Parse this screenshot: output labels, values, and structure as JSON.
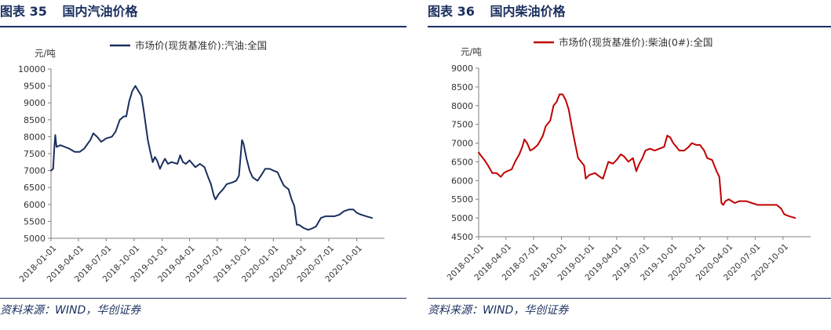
{
  "figures": [
    {
      "fig_label": "图表",
      "fig_number": "35",
      "title": "国内汽油价格",
      "source": "资料来源：WIND，华创证券",
      "chart_data": {
        "type": "line",
        "unit_label": "元/吨",
        "ylim": [
          5000,
          10000
        ],
        "y_ticks": [
          5000,
          5500,
          6000,
          6500,
          7000,
          7500,
          8000,
          8500,
          9000,
          9500,
          10000
        ],
        "x_range": [
          "2018-01-01",
          "2020-12-31"
        ],
        "x_ticks": [
          "2018-01-01",
          "2018-04-01",
          "2018-07-01",
          "2018-10-01",
          "2019-01-01",
          "2019-04-01",
          "2019-07-01",
          "2019-10-01",
          "2020-01-01",
          "2020-04-01",
          "2020-07-01",
          "2020-10-01"
        ],
        "grid": false,
        "legend_position": "top",
        "series": [
          {
            "name": "市场价(现货基准价):汽油:全国",
            "color": "#1a2f5e",
            "points": [
              [
                "2018-01-01",
                7000
              ],
              [
                "2018-01-08",
                7050
              ],
              [
                "2018-01-12",
                7700
              ],
              [
                "2018-01-15",
                8050
              ],
              [
                "2018-01-19",
                7700
              ],
              [
                "2018-02-01",
                7750
              ],
              [
                "2018-03-01",
                7650
              ],
              [
                "2018-03-20",
                7550
              ],
              [
                "2018-04-05",
                7550
              ],
              [
                "2018-04-20",
                7650
              ],
              [
                "2018-05-10",
                7900
              ],
              [
                "2018-05-20",
                8100
              ],
              [
                "2018-06-01",
                8000
              ],
              [
                "2018-06-15",
                7850
              ],
              [
                "2018-07-01",
                7950
              ],
              [
                "2018-07-20",
                8000
              ],
              [
                "2018-08-01",
                8150
              ],
              [
                "2018-08-15",
                8500
              ],
              [
                "2018-08-28",
                8600
              ],
              [
                "2018-09-05",
                8600
              ],
              [
                "2018-09-15",
                9050
              ],
              [
                "2018-09-25",
                9350
              ],
              [
                "2018-10-05",
                9500
              ],
              [
                "2018-10-15",
                9350
              ],
              [
                "2018-10-25",
                9200
              ],
              [
                "2018-11-01",
                8800
              ],
              [
                "2018-11-08",
                8350
              ],
              [
                "2018-11-15",
                7900
              ],
              [
                "2018-11-22",
                7600
              ],
              [
                "2018-12-01",
                7250
              ],
              [
                "2018-12-08",
                7400
              ],
              [
                "2018-12-15",
                7300
              ],
              [
                "2018-12-25",
                7050
              ],
              [
                "2019-01-01",
                7200
              ],
              [
                "2019-01-10",
                7350
              ],
              [
                "2019-01-20",
                7200
              ],
              [
                "2019-02-01",
                7250
              ],
              [
                "2019-02-20",
                7200
              ],
              [
                "2019-03-01",
                7450
              ],
              [
                "2019-03-10",
                7250
              ],
              [
                "2019-03-20",
                7200
              ],
              [
                "2019-04-01",
                7300
              ],
              [
                "2019-04-20",
                7100
              ],
              [
                "2019-05-05",
                7200
              ],
              [
                "2019-05-20",
                7100
              ],
              [
                "2019-06-01",
                6800
              ],
              [
                "2019-06-10",
                6600
              ],
              [
                "2019-06-20",
                6250
              ],
              [
                "2019-06-25",
                6150
              ],
              [
                "2019-07-05",
                6300
              ],
              [
                "2019-07-20",
                6450
              ],
              [
                "2019-08-01",
                6600
              ],
              [
                "2019-08-20",
                6650
              ],
              [
                "2019-09-01",
                6700
              ],
              [
                "2019-09-10",
                6850
              ],
              [
                "2019-09-20",
                7900
              ],
              [
                "2019-09-25",
                7800
              ],
              [
                "2019-10-05",
                7350
              ],
              [
                "2019-10-15",
                7000
              ],
              [
                "2019-10-25",
                6800
              ],
              [
                "2019-11-10",
                6700
              ],
              [
                "2019-11-25",
                6900
              ],
              [
                "2019-12-05",
                7050
              ],
              [
                "2019-12-20",
                7050
              ],
              [
                "2020-01-01",
                7000
              ],
              [
                "2020-01-15",
                6950
              ],
              [
                "2020-01-25",
                6750
              ],
              [
                "2020-02-05",
                6550
              ],
              [
                "2020-02-20",
                6450
              ],
              [
                "2020-03-01",
                6150
              ],
              [
                "2020-03-10",
                5950
              ],
              [
                "2020-03-18",
                5400
              ],
              [
                "2020-03-25",
                5400
              ],
              [
                "2020-04-10",
                5300
              ],
              [
                "2020-04-25",
                5250
              ],
              [
                "2020-05-10",
                5300
              ],
              [
                "2020-05-20",
                5350
              ],
              [
                "2020-06-05",
                5600
              ],
              [
                "2020-06-20",
                5650
              ],
              [
                "2020-07-01",
                5650
              ],
              [
                "2020-07-20",
                5650
              ],
              [
                "2020-08-05",
                5700
              ],
              [
                "2020-08-20",
                5800
              ],
              [
                "2020-09-05",
                5850
              ],
              [
                "2020-09-20",
                5850
              ],
              [
                "2020-10-01",
                5750
              ],
              [
                "2020-10-15",
                5700
              ],
              [
                "2020-11-01",
                5650
              ],
              [
                "2020-11-20",
                5600
              ]
            ]
          }
        ]
      }
    },
    {
      "fig_label": "图表",
      "fig_number": "36",
      "title": "国内柴油价格",
      "source": "资料来源：WIND，华创证券",
      "chart_data": {
        "type": "line",
        "unit_label": "元/吨",
        "ylim": [
          4500,
          9000
        ],
        "y_ticks": [
          4500,
          5000,
          5500,
          6000,
          6500,
          7000,
          7500,
          8000,
          8500,
          9000
        ],
        "x_range": [
          "2018-01-01",
          "2020-12-31"
        ],
        "x_ticks": [
          "2018-01-01",
          "2018-04-01",
          "2018-07-01",
          "2018-10-01",
          "2019-01-01",
          "2019-04-01",
          "2019-07-01",
          "2019-10-01",
          "2020-01-01",
          "2020-04-01",
          "2020-07-01",
          "2020-10-01"
        ],
        "grid": false,
        "legend_position": "top",
        "series": [
          {
            "name": "市场价(现货基准价):柴油(0#):全国",
            "color": "#c00000",
            "points": [
              [
                "2018-01-01",
                6750
              ],
              [
                "2018-01-10",
                6650
              ],
              [
                "2018-01-20",
                6550
              ],
              [
                "2018-02-01",
                6400
              ],
              [
                "2018-02-15",
                6200
              ],
              [
                "2018-03-01",
                6200
              ],
              [
                "2018-03-15",
                6100
              ],
              [
                "2018-03-25",
                6200
              ],
              [
                "2018-04-05",
                6250
              ],
              [
                "2018-04-20",
                6300
              ],
              [
                "2018-05-01",
                6500
              ],
              [
                "2018-05-15",
                6700
              ],
              [
                "2018-05-25",
                6900
              ],
              [
                "2018-06-01",
                7100
              ],
              [
                "2018-06-10",
                7000
              ],
              [
                "2018-06-20",
                6800
              ],
              [
                "2018-07-01",
                6850
              ],
              [
                "2018-07-15",
                6950
              ],
              [
                "2018-08-01",
                7200
              ],
              [
                "2018-08-10",
                7450
              ],
              [
                "2018-08-25",
                7600
              ],
              [
                "2018-09-05",
                8000
              ],
              [
                "2018-09-15",
                8100
              ],
              [
                "2018-09-25",
                8300
              ],
              [
                "2018-10-05",
                8300
              ],
              [
                "2018-10-15",
                8150
              ],
              [
                "2018-10-25",
                7900
              ],
              [
                "2018-11-05",
                7400
              ],
              [
                "2018-11-15",
                7000
              ],
              [
                "2018-11-25",
                6600
              ],
              [
                "2018-12-05",
                6500
              ],
              [
                "2018-12-15",
                6400
              ],
              [
                "2018-12-20",
                6050
              ],
              [
                "2019-01-01",
                6150
              ],
              [
                "2019-01-20",
                6200
              ],
              [
                "2019-02-05",
                6100
              ],
              [
                "2019-02-15",
                6050
              ],
              [
                "2019-02-25",
                6300
              ],
              [
                "2019-03-05",
                6500
              ],
              [
                "2019-03-20",
                6450
              ],
              [
                "2019-04-01",
                6550
              ],
              [
                "2019-04-15",
                6700
              ],
              [
                "2019-04-25",
                6650
              ],
              [
                "2019-05-10",
                6500
              ],
              [
                "2019-05-25",
                6600
              ],
              [
                "2019-06-05",
                6250
              ],
              [
                "2019-06-15",
                6450
              ],
              [
                "2019-06-25",
                6600
              ],
              [
                "2019-07-05",
                6800
              ],
              [
                "2019-07-20",
                6850
              ],
              [
                "2019-08-05",
                6800
              ],
              [
                "2019-08-20",
                6850
              ],
              [
                "2019-09-05",
                6900
              ],
              [
                "2019-09-15",
                7200
              ],
              [
                "2019-09-25",
                7150
              ],
              [
                "2019-10-05",
                7000
              ],
              [
                "2019-10-15",
                6900
              ],
              [
                "2019-10-25",
                6800
              ],
              [
                "2019-11-10",
                6800
              ],
              [
                "2019-11-25",
                6900
              ],
              [
                "2019-12-05",
                7000
              ],
              [
                "2019-12-20",
                6950
              ],
              [
                "2020-01-01",
                6950
              ],
              [
                "2020-01-15",
                6800
              ],
              [
                "2020-01-25",
                6600
              ],
              [
                "2020-02-10",
                6550
              ],
              [
                "2020-02-25",
                6250
              ],
              [
                "2020-03-05",
                6100
              ],
              [
                "2020-03-12",
                5400
              ],
              [
                "2020-03-18",
                5350
              ],
              [
                "2020-03-25",
                5450
              ],
              [
                "2020-04-05",
                5500
              ],
              [
                "2020-04-15",
                5450
              ],
              [
                "2020-04-25",
                5400
              ],
              [
                "2020-05-10",
                5450
              ],
              [
                "2020-06-01",
                5450
              ],
              [
                "2020-06-20",
                5400
              ],
              [
                "2020-07-10",
                5350
              ],
              [
                "2020-08-01",
                5350
              ],
              [
                "2020-08-20",
                5350
              ],
              [
                "2020-09-10",
                5350
              ],
              [
                "2020-09-25",
                5250
              ],
              [
                "2020-10-05",
                5100
              ],
              [
                "2020-10-20",
                5050
              ],
              [
                "2020-11-10",
                5000
              ]
            ]
          }
        ]
      }
    }
  ]
}
